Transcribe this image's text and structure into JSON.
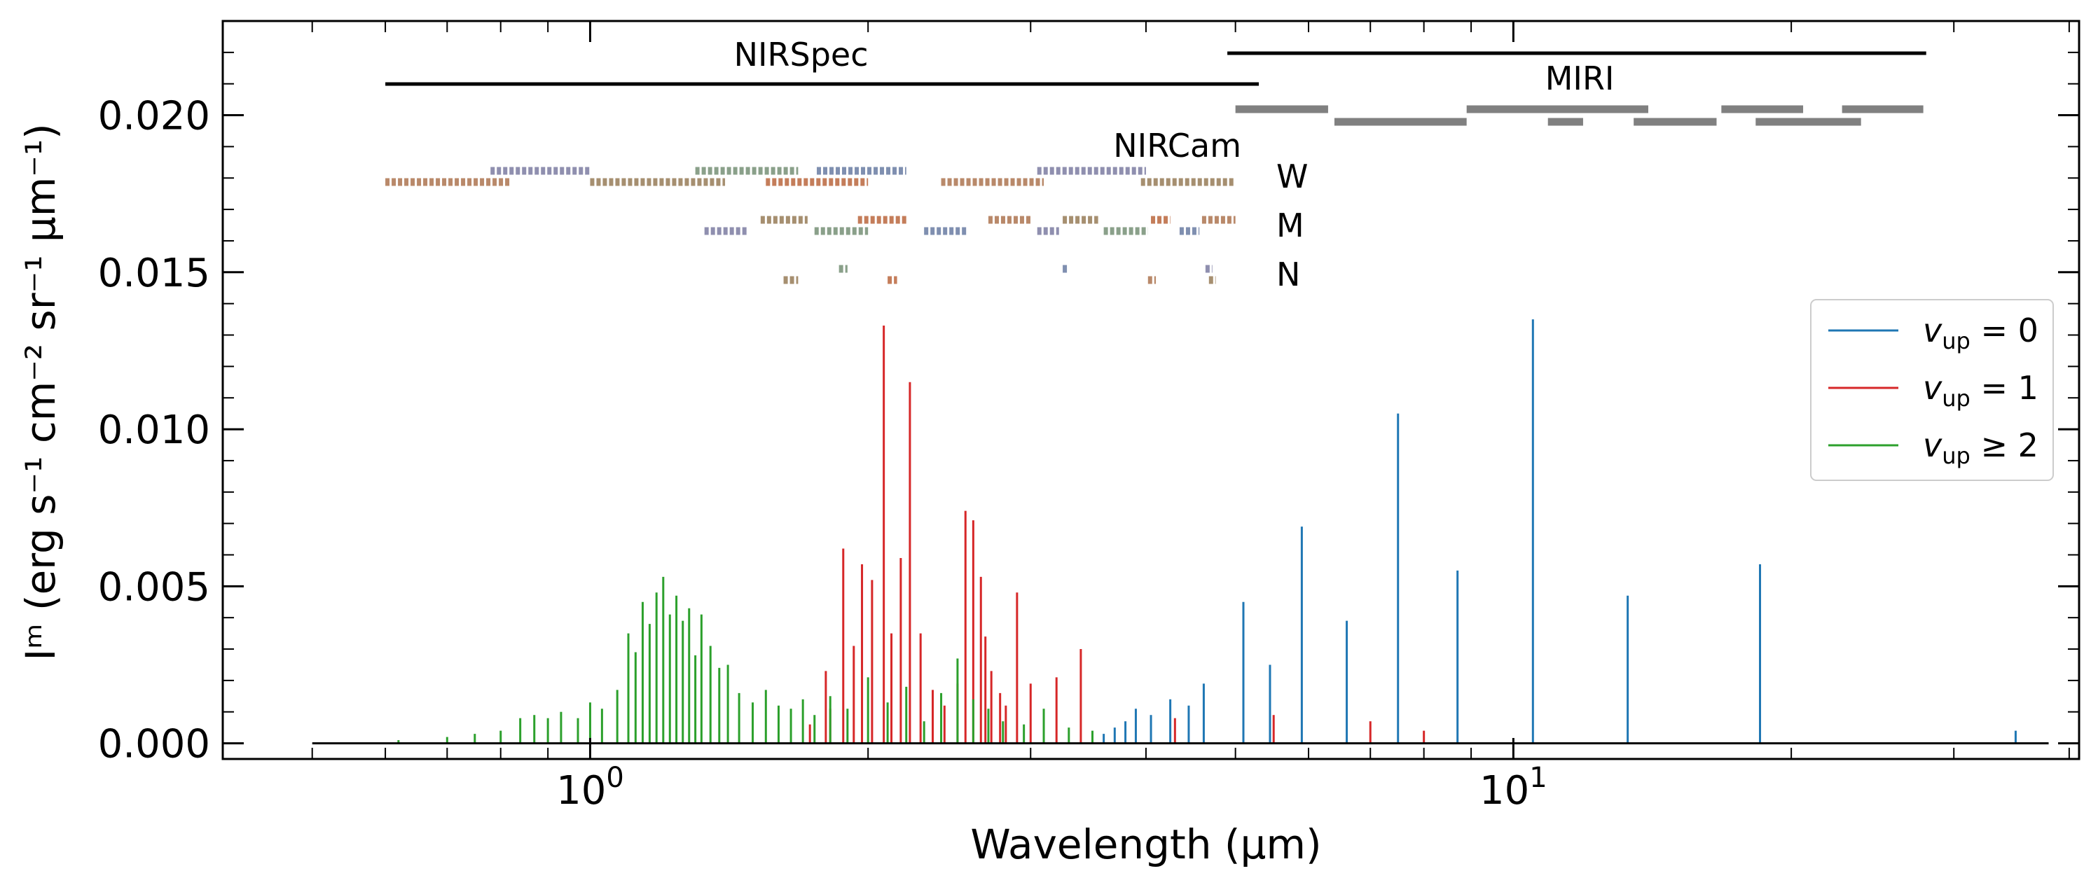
{
  "chart_data": {
    "type": "line",
    "xscale": "log",
    "xlabel": "Wavelength (μm)",
    "ylabel": "Iᵐ (erg s⁻¹ cm⁻² sr⁻¹ μm⁻¹)",
    "xlim": [
      0.4,
      41
    ],
    "ylim": [
      -0.0005,
      0.023
    ],
    "x_tick_labels": [
      {
        "value": 1,
        "base": "10",
        "exp": "0"
      },
      {
        "value": 10,
        "base": "10",
        "exp": "1"
      }
    ],
    "y_ticks": [
      {
        "value": 0.0,
        "label": "0.000"
      },
      {
        "value": 0.005,
        "label": "0.005"
      },
      {
        "value": 0.01,
        "label": "0.010"
      },
      {
        "value": 0.015,
        "label": "0.015"
      },
      {
        "value": 0.02,
        "label": "0.020"
      }
    ],
    "legend_position": "center-right",
    "series": [
      {
        "name": "v_up = 0",
        "label_var": "v",
        "label_sub": "up",
        "label_rel": "= 0",
        "color": "#1f77b4",
        "x": [
          3.6,
          3.7,
          3.8,
          3.9,
          4.05,
          4.25,
          4.45,
          4.62,
          5.1,
          5.45,
          5.9,
          6.6,
          7.5,
          8.7,
          10.5,
          13.3,
          18.5,
          35.0
        ],
        "y": [
          0.0003,
          0.0005,
          0.0007,
          0.0011,
          0.0009,
          0.0014,
          0.0012,
          0.0019,
          0.0045,
          0.0025,
          0.0069,
          0.0039,
          0.0105,
          0.0055,
          0.0135,
          0.0047,
          0.0057,
          0.0004
        ]
      },
      {
        "name": "v_up = 1",
        "label_var": "v",
        "label_sub": "up",
        "label_rel": "= 1",
        "color": "#d62728",
        "x": [
          1.73,
          1.8,
          1.82,
          1.88,
          1.93,
          1.97,
          2.02,
          2.08,
          2.12,
          2.17,
          2.22,
          2.28,
          2.35,
          2.42,
          2.5,
          2.55,
          2.6,
          2.65,
          2.68,
          2.72,
          2.78,
          2.82,
          2.9,
          3.0,
          3.2,
          3.4,
          4.3,
          5.5,
          7.0,
          8.0
        ],
        "y": [
          0.0006,
          0.0023,
          0.0011,
          0.0062,
          0.0031,
          0.0057,
          0.0052,
          0.0133,
          0.0035,
          0.0059,
          0.0115,
          0.0035,
          0.0017,
          0.0012,
          0.0019,
          0.0074,
          0.0071,
          0.0053,
          0.0034,
          0.0023,
          0.0016,
          0.0012,
          0.0048,
          0.0019,
          0.0021,
          0.003,
          0.0008,
          0.0009,
          0.0007,
          0.0004
        ]
      },
      {
        "name": "v_up ≥ 2",
        "label_var": "v",
        "label_sub": "up",
        "label_rel": "≥ 2",
        "color": "#2ca02c",
        "x": [
          0.62,
          0.7,
          0.75,
          0.8,
          0.84,
          0.87,
          0.9,
          0.93,
          0.97,
          1.0,
          1.03,
          1.07,
          1.1,
          1.12,
          1.14,
          1.16,
          1.18,
          1.2,
          1.22,
          1.24,
          1.26,
          1.28,
          1.3,
          1.32,
          1.35,
          1.38,
          1.41,
          1.45,
          1.5,
          1.55,
          1.6,
          1.65,
          1.7,
          1.75,
          1.82,
          1.9,
          2.0,
          2.1,
          2.2,
          2.3,
          2.4,
          2.5,
          2.6,
          2.7,
          2.8,
          2.95,
          3.1,
          3.3,
          3.5
        ],
        "y": [
          0.0001,
          0.0002,
          0.0003,
          0.0004,
          0.0008,
          0.0009,
          0.0008,
          0.001,
          0.0008,
          0.0013,
          0.0011,
          0.0017,
          0.0035,
          0.0029,
          0.0045,
          0.0038,
          0.0048,
          0.0053,
          0.0041,
          0.0047,
          0.0039,
          0.0043,
          0.0028,
          0.0041,
          0.0031,
          0.0024,
          0.0025,
          0.0016,
          0.0013,
          0.0017,
          0.0012,
          0.0011,
          0.0014,
          0.0009,
          0.0015,
          0.0011,
          0.0021,
          0.0013,
          0.0018,
          0.0007,
          0.0016,
          0.0027,
          0.0014,
          0.0011,
          0.0007,
          0.0006,
          0.0011,
          0.0005,
          0.0004
        ]
      }
    ],
    "annotations": {
      "nirspec": {
        "label": "NIRSpec",
        "range": [
          0.6,
          5.3
        ]
      },
      "miri": {
        "label": "MIRI",
        "range": [
          4.9,
          28.0
        ]
      },
      "nircam": {
        "label": "NIRCam",
        "rows": [
          {
            "label": "W",
            "filters": [
              [
                0.6,
                0.82
              ],
              [
                0.78,
                1.0
              ],
              [
                1.0,
                1.4
              ],
              [
                1.3,
                1.68
              ],
              [
                1.55,
                2.0
              ],
              [
                1.76,
                2.2
              ],
              [
                2.4,
                3.1
              ],
              [
                3.05,
                4.0
              ],
              [
                3.95,
                5.0
              ]
            ]
          },
          {
            "label": "M",
            "filters": [
              [
                1.33,
                1.48
              ],
              [
                1.53,
                1.72
              ],
              [
                1.75,
                2.0
              ],
              [
                1.95,
                2.2
              ],
              [
                2.3,
                2.56
              ],
              [
                2.7,
                3.0
              ],
              [
                3.05,
                3.22
              ],
              [
                3.25,
                3.55
              ],
              [
                3.6,
                4.02
              ],
              [
                4.05,
                4.25
              ],
              [
                4.35,
                4.57
              ],
              [
                4.6,
                5.0
              ]
            ]
          },
          {
            "label": "N",
            "filters": [
              [
                1.62,
                1.68
              ],
              [
                1.86,
                1.9
              ],
              [
                2.1,
                2.15
              ],
              [
                3.25,
                3.3
              ],
              [
                4.02,
                4.1
              ],
              [
                4.64,
                4.72
              ],
              [
                4.68,
                4.76
              ]
            ]
          }
        ]
      },
      "miri_filters": [
        [
          5.0,
          6.3
        ],
        [
          6.4,
          8.9
        ],
        [
          8.9,
          11.6
        ],
        [
          10.9,
          11.9
        ],
        [
          11.4,
          14.0
        ],
        [
          13.5,
          16.6
        ],
        [
          16.8,
          20.6
        ],
        [
          18.3,
          23.8
        ],
        [
          22.7,
          27.8
        ]
      ]
    }
  }
}
